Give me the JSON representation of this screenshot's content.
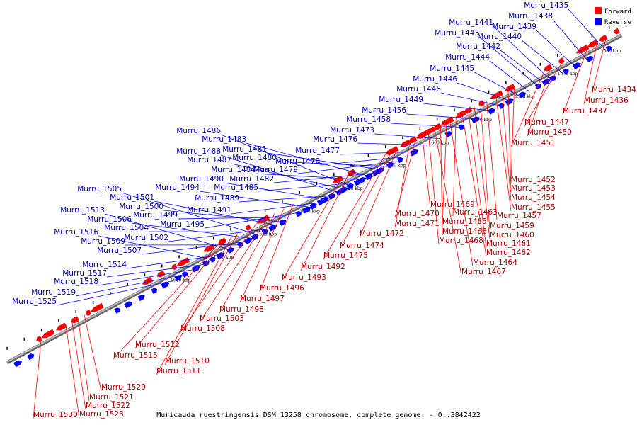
{
  "legend": [
    {
      "label": "Forward",
      "color": "#ff0000"
    },
    {
      "label": "Reverse",
      "color": "#0000ff"
    }
  ],
  "caption": "Muricauda ruestringensis DSM 13258 chromosome, complete genome. - 0..3842422",
  "ticks": [
    {
      "label": "1560 kbp",
      "pos": 0.025
    },
    {
      "label": "1570 kbp",
      "pos": 0.095
    },
    {
      "label": "1580 kbp",
      "pos": 0.165
    },
    {
      "label": "1590 kbp",
      "pos": 0.235
    },
    {
      "label": "1600 kbp",
      "pos": 0.305
    },
    {
      "label": "1610 kbp",
      "pos": 0.375
    },
    {
      "label": "1620 kbp",
      "pos": 0.445
    },
    {
      "label": "1630 kbp",
      "pos": 0.515
    },
    {
      "label": "1640 kbp",
      "pos": 0.585
    },
    {
      "label": "1650 kbp",
      "pos": 0.655
    },
    {
      "label": "1660 kbp",
      "pos": 0.725
    }
  ],
  "forward_labels": [
    "Murru_1434",
    "Murru_1436",
    "Murru_1437",
    "Murru_1447",
    "Murru_1450",
    "Murru_1451",
    "Murru_1452",
    "Murru_1453",
    "Murru_1454",
    "Murru_1455",
    "Murru_1457",
    "Murru_1459",
    "Murru_1460",
    "Murru_1461",
    "Murru_1462",
    "Murru_1463",
    "Murru_1464",
    "Murru_1465",
    "Murru_1466",
    "Murru_1467",
    "Murru_1468",
    "Murru_1469",
    "Murru_1470",
    "Murru_1471",
    "Murru_1472",
    "Murru_1474",
    "Murru_1475",
    "Murru_1492",
    "Murru_1493",
    "Murru_1496",
    "Murru_1497",
    "Murru_1498",
    "Murru_1503",
    "Murru_1508",
    "Murru_1510",
    "Murru_1511",
    "Murru_1512",
    "Murru_1515",
    "Murru_1520",
    "Murru_1521",
    "Murru_1522",
    "Murru_1523",
    "Murru_1530"
  ],
  "reverse_labels": [
    "Murru_1435",
    "Murru_1438",
    "Murru_1439",
    "Murru_1440",
    "Murru_1441",
    "Murru_1442",
    "Murru_1443",
    "Murru_1444",
    "Murru_1445",
    "Murru_1446",
    "Murru_1448",
    "Murru_1449",
    "Murru_1456",
    "Murru_1458",
    "Murru_1473",
    "Murru_1476",
    "Murru_1477",
    "Murru_1478",
    "Murru_1479",
    "Murru_1480",
    "Murru_1481",
    "Murru_1482",
    "Murru_1483",
    "Murru_1484",
    "Murru_1485",
    "Murru_1486",
    "Murru_1487",
    "Murru_1488",
    "Murru_1489",
    "Murru_1490",
    "Murru_1491",
    "Murru_1494",
    "Murru_1495",
    "Murru_1499",
    "Murru_1500",
    "Murru_1501",
    "Murru_1502",
    "Murru_1504",
    "Murru_1505",
    "Murru_1506",
    "Murru_1507",
    "Murru_1509",
    "Murru_1513",
    "Murru_1514",
    "Murru_1516",
    "Murru_1517",
    "Murru_1518",
    "Murru_1519",
    "Murru_1525"
  ],
  "colors": {
    "forward": "#ff0000",
    "reverse": "#0000ff",
    "forward_line": "#ff0000",
    "reverse_line": "#0000ff",
    "axis": "#888888"
  }
}
